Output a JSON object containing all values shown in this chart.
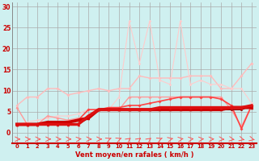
{
  "bg_color": "#cff0f0",
  "grid_color": "#aaaaaa",
  "xlabel": "Vent moyen/en rafales ( km/h )",
  "tick_color": "#cc0000",
  "x_ticks": [
    0,
    1,
    2,
    3,
    4,
    5,
    6,
    7,
    8,
    9,
    10,
    11,
    12,
    13,
    14,
    15,
    16,
    17,
    18,
    19,
    20,
    21,
    22,
    23
  ],
  "ylim": [
    -2.5,
    31
  ],
  "xlim": [
    -0.5,
    23.5
  ],
  "yticks": [
    0,
    5,
    10,
    15,
    20,
    25,
    30
  ],
  "series": [
    {
      "y": [
        6.5,
        8.5,
        8.5,
        10.5,
        10.5,
        9.0,
        9.5,
        10.0,
        10.5,
        10.0,
        10.5,
        10.5,
        13.5,
        13.0,
        13.0,
        13.0,
        13.0,
        13.5,
        13.5,
        13.5,
        10.5,
        10.5,
        13.5,
        16.5
      ],
      "color": "#ffbbbb",
      "lw": 1.0,
      "marker": "D",
      "ms": 2.0,
      "zorder": 2
    },
    {
      "y": [
        6.0,
        2.0,
        2.0,
        4.0,
        3.5,
        3.0,
        3.5,
        3.5,
        5.5,
        5.5,
        5.5,
        8.5,
        8.5,
        8.5,
        8.5,
        8.5,
        8.5,
        8.5,
        8.5,
        8.5,
        8.5,
        5.5,
        1.5,
        6.5
      ],
      "color": "#ff9999",
      "lw": 1.0,
      "marker": "D",
      "ms": 2.0,
      "zorder": 3
    },
    {
      "y": [
        2.0,
        2.5,
        3.0,
        3.5,
        4.0,
        4.0,
        4.5,
        5.5,
        5.5,
        5.5,
        8.5,
        26.5,
        16.5,
        26.5,
        12.5,
        11.5,
        26.5,
        11.5,
        12.5,
        11.5,
        11.5,
        10.5,
        10.5,
        7.0
      ],
      "color": "#ffcccc",
      "lw": 0.8,
      "marker": "D",
      "ms": 1.8,
      "zorder": 2
    },
    {
      "y": [
        2.0,
        2.0,
        2.0,
        2.5,
        2.5,
        2.5,
        3.0,
        3.5,
        5.5,
        5.5,
        5.5,
        5.5,
        5.5,
        5.5,
        5.5,
        5.5,
        5.5,
        5.5,
        5.5,
        5.5,
        5.5,
        6.0,
        6.0,
        6.0
      ],
      "color": "#cc0000",
      "lw": 2.8,
      "marker": "^",
      "ms": 2.5,
      "zorder": 5
    },
    {
      "y": [
        2.0,
        2.0,
        2.0,
        2.0,
        2.0,
        2.0,
        2.0,
        3.5,
        5.5,
        5.5,
        5.5,
        5.5,
        5.5,
        5.5,
        5.5,
        5.5,
        5.5,
        5.5,
        5.5,
        5.5,
        5.5,
        5.5,
        5.5,
        6.5
      ],
      "color": "#990000",
      "lw": 1.2,
      "marker": "^",
      "ms": 2.0,
      "zorder": 4
    },
    {
      "y": [
        2.0,
        2.0,
        2.0,
        2.5,
        2.5,
        2.5,
        3.0,
        5.5,
        5.5,
        6.0,
        6.0,
        6.5,
        6.5,
        7.0,
        7.5,
        8.0,
        8.5,
        8.5,
        8.5,
        8.5,
        8.0,
        6.5,
        1.0,
        6.5
      ],
      "color": "#ff4444",
      "lw": 1.2,
      "marker": "D",
      "ms": 2.0,
      "zorder": 3
    },
    {
      "y": [
        2.0,
        2.0,
        2.0,
        2.0,
        2.0,
        2.0,
        2.0,
        4.0,
        5.5,
        5.5,
        5.5,
        5.5,
        5.5,
        5.5,
        6.0,
        6.0,
        6.0,
        6.0,
        6.0,
        6.0,
        6.0,
        6.0,
        6.0,
        6.5
      ],
      "color": "#dd1111",
      "lw": 2.5,
      "marker": "^",
      "ms": 2.5,
      "zorder": 6
    }
  ],
  "arrows": {
    "color": "#ff5555",
    "y_data": -1.5,
    "lw": 0.7
  }
}
